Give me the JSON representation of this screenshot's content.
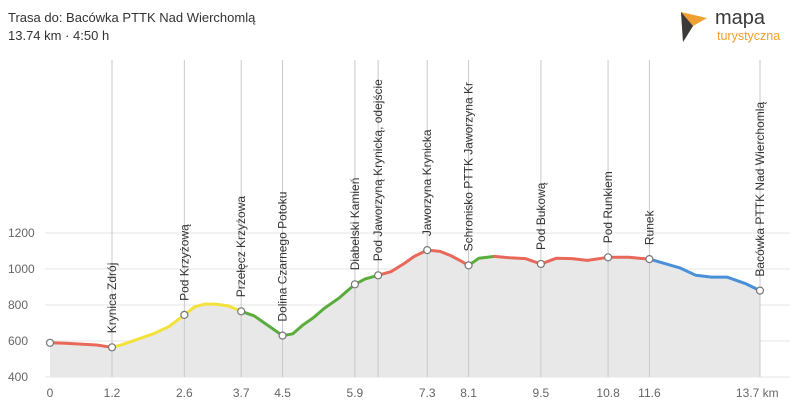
{
  "header": {
    "title": "Trasa do: Bacówka PTTK Nad Wierchomlą",
    "subtitle": "13.74 km · 4:50 h"
  },
  "logo": {
    "word1": "mapa",
    "word2": "turystyczna"
  },
  "chart_data": {
    "type": "area",
    "x_unit": "km",
    "xlim": [
      0,
      13.74
    ],
    "ylim": [
      400,
      1200
    ],
    "grid": true,
    "y_ticks": [
      400,
      600,
      800,
      1000,
      1200
    ],
    "x_ticks": [
      "0",
      "1.2",
      "2.6",
      "3.7",
      "4.5",
      "5.9",
      "7.3",
      "8.1",
      "9.5",
      "10.8",
      "11.6",
      "13.7 km"
    ],
    "x_tick_values": [
      0,
      1.2,
      2.6,
      3.7,
      4.5,
      5.9,
      7.3,
      8.1,
      9.5,
      10.8,
      11.6,
      13.7
    ],
    "profile": [
      [
        0,
        590
      ],
      [
        0.3,
        588
      ],
      [
        0.6,
        583
      ],
      [
        0.9,
        578
      ],
      [
        1.2,
        565
      ],
      [
        1.4,
        580
      ],
      [
        1.7,
        610
      ],
      [
        2.0,
        640
      ],
      [
        2.3,
        680
      ],
      [
        2.6,
        745
      ],
      [
        2.8,
        790
      ],
      [
        3.0,
        805
      ],
      [
        3.2,
        805
      ],
      [
        3.45,
        795
      ],
      [
        3.7,
        765
      ],
      [
        3.95,
        740
      ],
      [
        4.15,
        700
      ],
      [
        4.3,
        670
      ],
      [
        4.45,
        640
      ],
      [
        4.5,
        630
      ],
      [
        4.7,
        640
      ],
      [
        4.9,
        690
      ],
      [
        5.1,
        730
      ],
      [
        5.3,
        780
      ],
      [
        5.6,
        840
      ],
      [
        5.9,
        915
      ],
      [
        6.1,
        945
      ],
      [
        6.35,
        965
      ],
      [
        6.6,
        985
      ],
      [
        6.85,
        1030
      ],
      [
        7.05,
        1070
      ],
      [
        7.3,
        1105
      ],
      [
        7.55,
        1098
      ],
      [
        7.75,
        1075
      ],
      [
        7.95,
        1045
      ],
      [
        8.1,
        1020
      ],
      [
        8.3,
        1060
      ],
      [
        8.6,
        1070
      ],
      [
        8.9,
        1062
      ],
      [
        9.2,
        1058
      ],
      [
        9.5,
        1028
      ],
      [
        9.8,
        1060
      ],
      [
        10.1,
        1058
      ],
      [
        10.4,
        1048
      ],
      [
        10.8,
        1065
      ],
      [
        11.2,
        1065
      ],
      [
        11.6,
        1055
      ],
      [
        11.9,
        1030
      ],
      [
        12.2,
        1005
      ],
      [
        12.5,
        965
      ],
      [
        12.8,
        955
      ],
      [
        13.1,
        955
      ],
      [
        13.45,
        920
      ],
      [
        13.74,
        880
      ]
    ],
    "segments": [
      {
        "from": 0,
        "to": 1.2,
        "color": "#e8685a"
      },
      {
        "from": 1.2,
        "to": 3.7,
        "color": "#f3e23a"
      },
      {
        "from": 3.7,
        "to": 5.9,
        "color": "#5aad3c"
      },
      {
        "from": 5.9,
        "to": 6.35,
        "color": "#5aad3c"
      },
      {
        "from": 6.35,
        "to": 8.1,
        "color": "#e8685a"
      },
      {
        "from": 8.1,
        "to": 8.6,
        "color": "#5aad3c"
      },
      {
        "from": 8.6,
        "to": 11.6,
        "color": "#e8685a"
      },
      {
        "from": 11.6,
        "to": 13.74,
        "color": "#4a90d9"
      }
    ],
    "area_fill": "#e8e8e8",
    "waypoints": [
      {
        "x": 0,
        "y": 590,
        "label": ""
      },
      {
        "x": 1.2,
        "y": 565,
        "label": "Krynica Zdrój"
      },
      {
        "x": 2.6,
        "y": 745,
        "label": "Pod Krzyżową"
      },
      {
        "x": 3.7,
        "y": 765,
        "label": "Przełęcz Krzyżowa"
      },
      {
        "x": 4.5,
        "y": 630,
        "label": "Dolina Czarnego Potoku"
      },
      {
        "x": 5.9,
        "y": 915,
        "label": "Diabelski Kamień"
      },
      {
        "x": 6.35,
        "y": 965,
        "label": "Pod Jaworzyną Krynicką, odejście"
      },
      {
        "x": 7.3,
        "y": 1105,
        "label": "Jaworzyna Krynicka"
      },
      {
        "x": 8.1,
        "y": 1020,
        "label": "Schronisko PTTK Jaworzyna Kr"
      },
      {
        "x": 9.5,
        "y": 1028,
        "label": "Pod Bukową"
      },
      {
        "x": 10.8,
        "y": 1065,
        "label": "Pod Runkiem"
      },
      {
        "x": 11.6,
        "y": 1055,
        "label": "Runek"
      },
      {
        "x": 13.74,
        "y": 880,
        "label": "Bacówka PTTK Nad Wierchomlą"
      }
    ]
  }
}
